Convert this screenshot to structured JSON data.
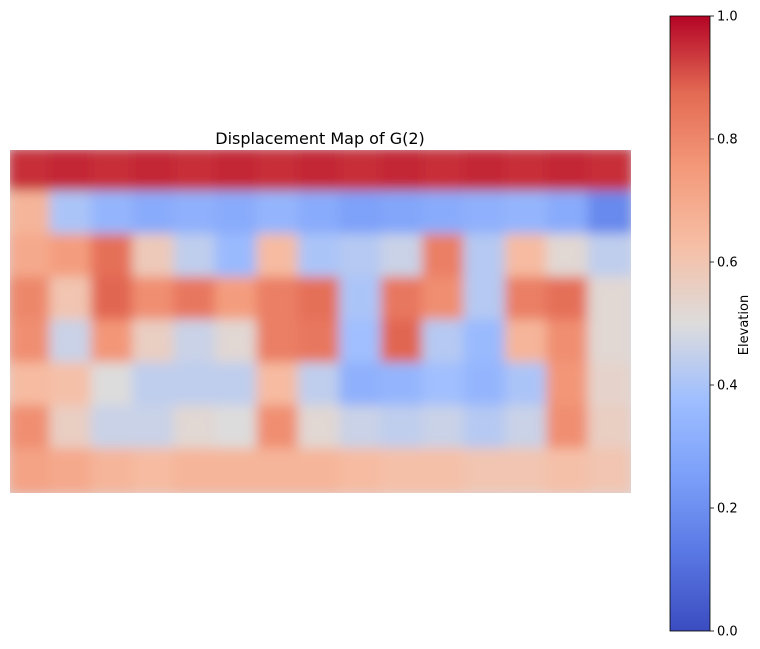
{
  "chart_data": {
    "type": "heatmap",
    "title": "Displacement Map of G(2)",
    "colormap": "coolwarm",
    "colorbar": {
      "label": "Elevation",
      "range": [
        0.0,
        1.0
      ],
      "ticks": [
        "0.0",
        "0.2",
        "0.4",
        "0.6",
        "0.8",
        "1.0"
      ]
    },
    "grid": false,
    "axes_visible": false,
    "summary_rows": [
      [
        0.95,
        0.96,
        0.95,
        0.96,
        0.95,
        0.96,
        0.95,
        0.96,
        0.95,
        0.96,
        0.95,
        0.96,
        0.95,
        0.96,
        0.95
      ],
      [
        0.66,
        0.4,
        0.34,
        0.3,
        0.32,
        0.3,
        0.34,
        0.3,
        0.26,
        0.28,
        0.3,
        0.32,
        0.34,
        0.3,
        0.18
      ],
      [
        0.7,
        0.74,
        0.86,
        0.58,
        0.44,
        0.36,
        0.64,
        0.4,
        0.42,
        0.46,
        0.82,
        0.42,
        0.64,
        0.52,
        0.44
      ],
      [
        0.8,
        0.6,
        0.88,
        0.78,
        0.84,
        0.74,
        0.82,
        0.86,
        0.4,
        0.84,
        0.78,
        0.42,
        0.82,
        0.86,
        0.52
      ],
      [
        0.78,
        0.46,
        0.76,
        0.56,
        0.46,
        0.52,
        0.82,
        0.84,
        0.38,
        0.88,
        0.42,
        0.36,
        0.66,
        0.78,
        0.52
      ],
      [
        0.64,
        0.62,
        0.5,
        0.44,
        0.44,
        0.44,
        0.64,
        0.44,
        0.32,
        0.34,
        0.38,
        0.34,
        0.4,
        0.76,
        0.54
      ],
      [
        0.78,
        0.56,
        0.46,
        0.46,
        0.52,
        0.5,
        0.78,
        0.52,
        0.46,
        0.44,
        0.46,
        0.42,
        0.46,
        0.78,
        0.56
      ],
      [
        0.72,
        0.7,
        0.66,
        0.64,
        0.66,
        0.66,
        0.66,
        0.66,
        0.64,
        0.62,
        0.62,
        0.6,
        0.6,
        0.62,
        0.6
      ]
    ]
  }
}
